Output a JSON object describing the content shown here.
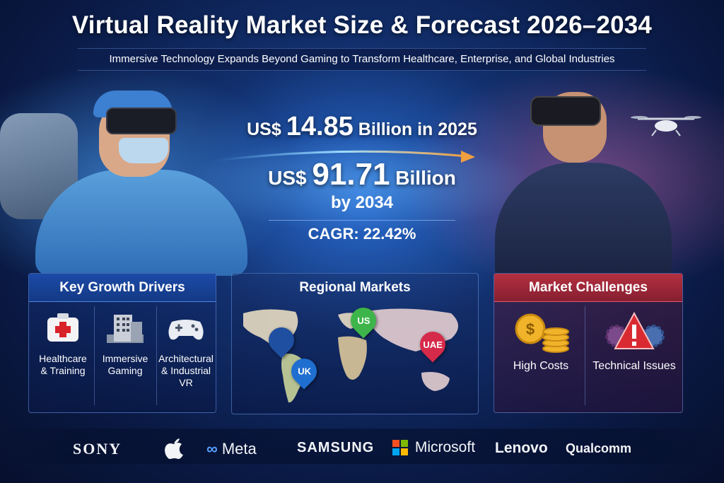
{
  "header": {
    "title": "Virtual Reality Market Size & Forecast 2026–2034",
    "subtitle": "Immersive Technology Expands Beyond Gaming to Transform Healthcare, Enterprise, and Global Industries"
  },
  "stats": {
    "current_prefix": "US$",
    "current_value": "14.85",
    "current_suffix": "Billion in 2025",
    "forecast_prefix": "US$",
    "forecast_value": "91.71",
    "forecast_suffix": "Billion",
    "forecast_year": "by 2034",
    "cagr": "CAGR: 22.42%"
  },
  "growth_drivers": {
    "title": "Key Growth Drivers",
    "items": [
      {
        "label_line1": "Healthcare",
        "label_line2": "& Training",
        "label_line3": "",
        "icon": "medical-kit-icon"
      },
      {
        "label_line1": "Immersive",
        "label_line2": "Gaming",
        "label_line3": "",
        "icon": "building-icon"
      },
      {
        "label_line1": "Architectural",
        "label_line2": "& Industrial",
        "label_line3": "VR",
        "icon": "game-controller-icon"
      }
    ]
  },
  "regional": {
    "title": "Regional Markets",
    "pins": [
      {
        "label": "US",
        "color": "#3db54a"
      },
      {
        "label": "UAE",
        "color": "#d62a4a"
      },
      {
        "label": "UK",
        "color": "#1f6fd0"
      }
    ]
  },
  "challenges": {
    "title": "Market Challenges",
    "items": [
      {
        "label": "High Costs",
        "icon": "coins-icon"
      },
      {
        "label": "Technical Issues",
        "icon": "warning-gears-icon"
      }
    ]
  },
  "logos": [
    "SONY",
    "Meta",
    "SAMSUNG",
    "Microsoft",
    "Lenovo",
    "Qualcomm"
  ],
  "colors": {
    "accent_blue": "#1c4aa8",
    "accent_red": "#b43040",
    "arrow_orange": "#f0a040"
  }
}
